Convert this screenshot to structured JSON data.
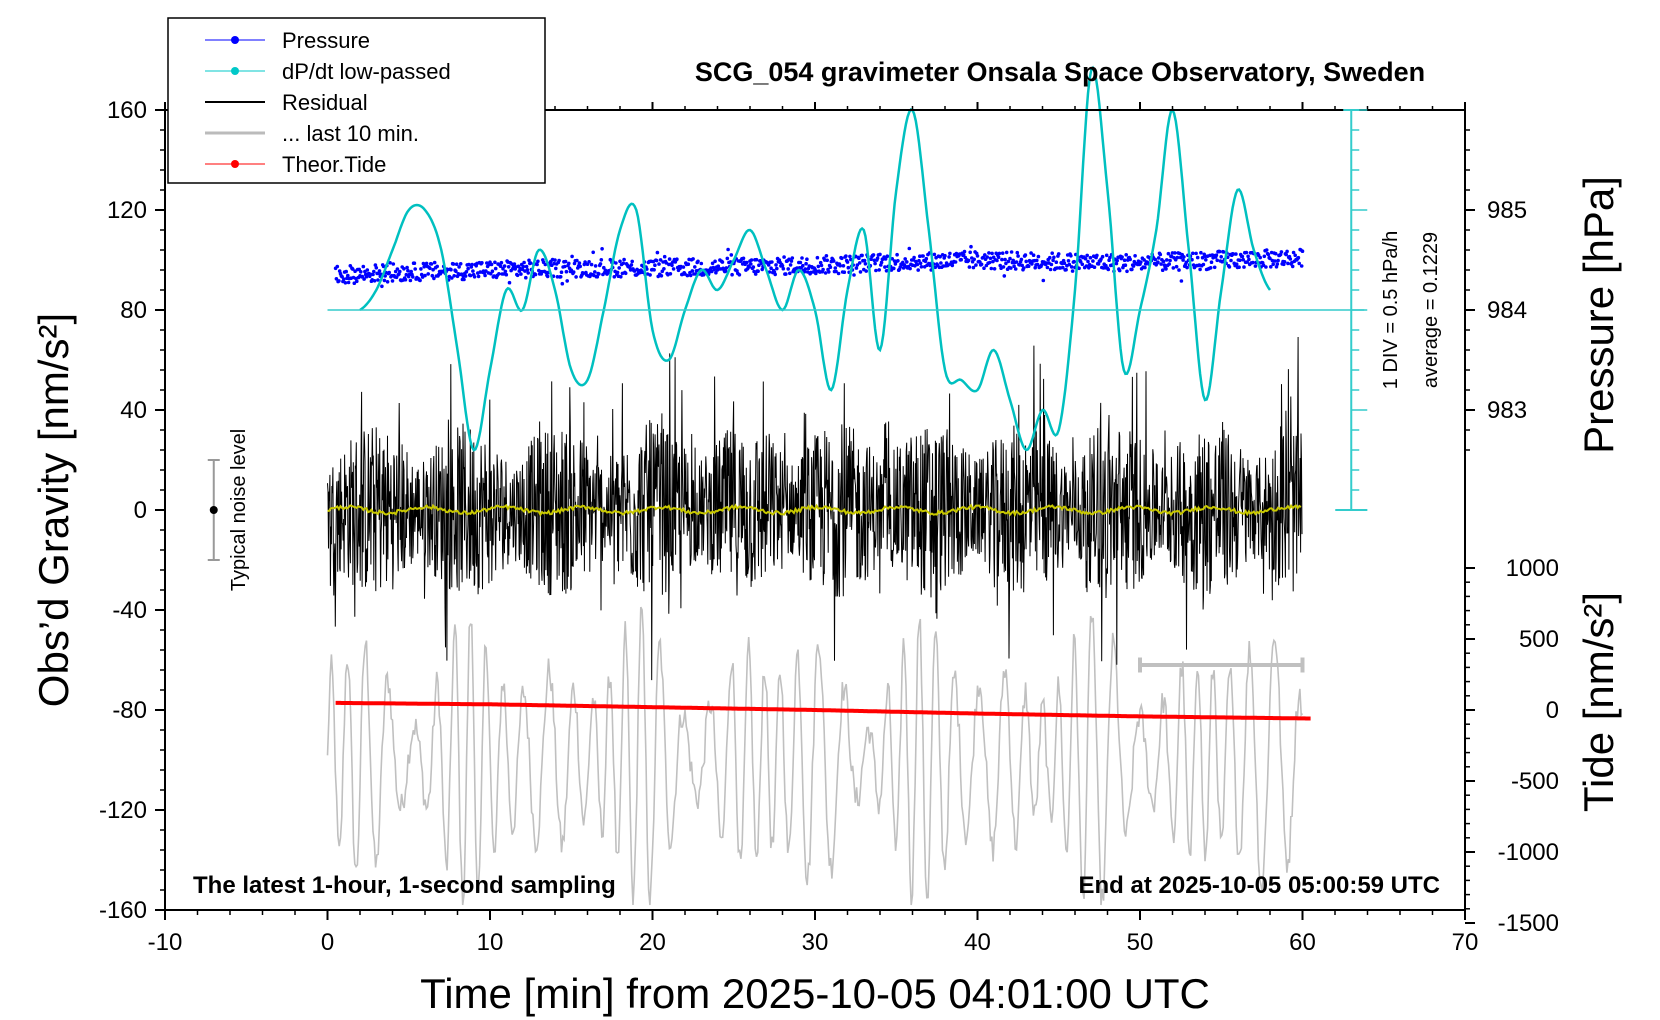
{
  "chart_data": {
    "type": "line",
    "title": "SCG_054 gravimeter Onsala Space Observatory, Sweden",
    "xlabel": "Time [min] from 2025-10-05 04:01:00 UTC",
    "ylabel_left": "Obs’d Gravity [nm/s²]",
    "ylabel_right_upper": "Pressure [hPa]",
    "ylabel_right_lower": "Tide [nm/s²]",
    "xlim": [
      -10,
      70
    ],
    "ylim_left": [
      -160,
      160
    ],
    "x_ticks": [
      "-10",
      "0",
      "10",
      "20",
      "30",
      "40",
      "50",
      "60",
      "70"
    ],
    "y_left_ticks": [
      "-160",
      "-120",
      "-80",
      "-40",
      "0",
      "40",
      "80",
      "120",
      "160"
    ],
    "pressure_ticks": [
      "983",
      "984",
      "985"
    ],
    "tide_ticks": [
      "-1500",
      "-1000",
      "-500",
      "0",
      "500",
      "1000"
    ],
    "legend": [
      "Pressure",
      "dP/dt low-passed",
      "Residual",
      "... last 10 min.",
      "Theor.Tide"
    ],
    "legend_position": "top-left",
    "series": [
      {
        "name": "Pressure",
        "color": "#0000ff",
        "unit": "hPa",
        "x": [
          0.5,
          5,
          10,
          15,
          20,
          25,
          30,
          35,
          40,
          45,
          50,
          55,
          60
        ],
        "y": [
          984.35,
          984.38,
          984.4,
          984.42,
          984.42,
          984.43,
          984.45,
          984.48,
          984.5,
          984.48,
          984.47,
          984.5,
          984.52
        ]
      },
      {
        "name": "dP/dt low-passed",
        "color": "#00c0c0",
        "unit": "hPa/h",
        "x": [
          2,
          3,
          4,
          5,
          6,
          7,
          8,
          9,
          10,
          11,
          12,
          13,
          14,
          15,
          16,
          17,
          18,
          19,
          20,
          21,
          22,
          23,
          24,
          25,
          26,
          27,
          28,
          29,
          30,
          31,
          32,
          33,
          34,
          35,
          36,
          37,
          38,
          39,
          40,
          41,
          42,
          43,
          44,
          45,
          46,
          47,
          48,
          49,
          50,
          51,
          52,
          53,
          54,
          55,
          56,
          57,
          58
        ],
        "y": [
          0,
          0.1,
          0.3,
          0.5,
          0.5,
          0.3,
          -0.2,
          -0.7,
          -0.3,
          0.1,
          0.0,
          0.3,
          0.1,
          -0.3,
          -0.35,
          0.0,
          0.4,
          0.5,
          -0.1,
          -0.25,
          0.0,
          0.2,
          0.1,
          0.25,
          0.4,
          0.2,
          0.0,
          0.2,
          0.0,
          -0.4,
          0.1,
          0.4,
          -0.2,
          0.6,
          1.0,
          0.4,
          -0.3,
          -0.35,
          -0.4,
          -0.2,
          -0.45,
          -0.7,
          -0.5,
          -0.6,
          0.1,
          1.2,
          0.6,
          -0.3,
          0.0,
          0.4,
          1.0,
          0.3,
          -0.45,
          0.1,
          0.6,
          0.3,
          0.1
        ]
      },
      {
        "name": "Residual",
        "color": "#000000",
        "unit": "nm/s²",
        "x_range": [
          0,
          60
        ],
        "mean": 0,
        "amplitude": 50
      },
      {
        "name": "... last 10 min.",
        "color": "#c0c0c0",
        "unit": "nm/s²",
        "x_range": [
          0,
          60
        ],
        "mean": -100,
        "amplitude": 60
      },
      {
        "name": "Theor.Tide",
        "color": "#ff0000",
        "unit": "nm/s²",
        "x": [
          0.5,
          10,
          20,
          30,
          40,
          50,
          60.5
        ],
        "y": [
          50,
          40,
          20,
          0,
          -25,
          -45,
          -60
        ]
      }
    ],
    "dPdt_scale_label": "1 DIV = 0.5 hPa/h",
    "dPdt_average_label": "average = 0.1229",
    "noise_label": "Typical noise level",
    "noise_center": 0,
    "noise_halfwidth": 20,
    "corner_left_text": "The latest 1-hour, 1-second sampling",
    "corner_right_text": "End at 2025-10-05 05:00:59 UTC"
  }
}
